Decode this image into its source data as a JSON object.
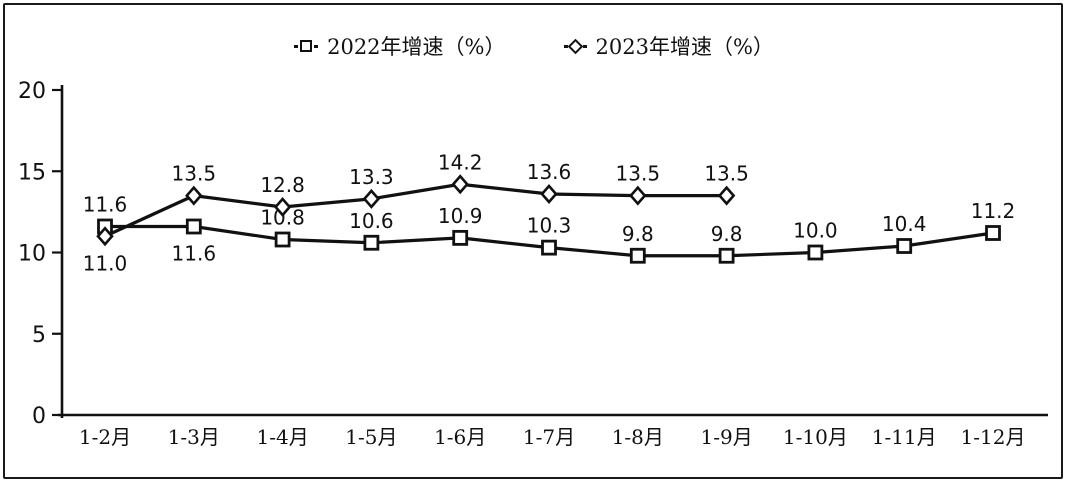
{
  "legend": {
    "items": [
      {
        "label": "2022年增速（%）",
        "marker": "square"
      },
      {
        "label": "2023年增速（%）",
        "marker": "diamond"
      }
    ]
  },
  "chart_data": {
    "type": "line",
    "title": "",
    "categories": [
      "1-2月",
      "1-3月",
      "1-4月",
      "1-5月",
      "1-6月",
      "1-7月",
      "1-8月",
      "1-9月",
      "1-10月",
      "1-11月",
      "1-12月"
    ],
    "series": [
      {
        "name": "2022年增速（%）",
        "marker": "square",
        "values": [
          11.6,
          11.6,
          10.8,
          10.6,
          10.9,
          10.3,
          9.8,
          9.8,
          10.0,
          10.4,
          11.2
        ]
      },
      {
        "name": "2023年增速（%）",
        "marker": "diamond",
        "values": [
          11.0,
          13.5,
          12.8,
          13.3,
          14.2,
          13.6,
          13.5,
          13.5
        ]
      }
    ],
    "xlabel": "",
    "ylabel": "",
    "ylim": [
      0,
      20
    ],
    "yticks": [
      0,
      5,
      10,
      15,
      20
    ],
    "grid": false,
    "legend_position": "top-center",
    "data_labels": true,
    "colors": {
      "line": "#111111",
      "marker_fill": "#ffffff",
      "text": "#111111",
      "background": "#ffffff",
      "border": "#1a1a1a"
    }
  }
}
